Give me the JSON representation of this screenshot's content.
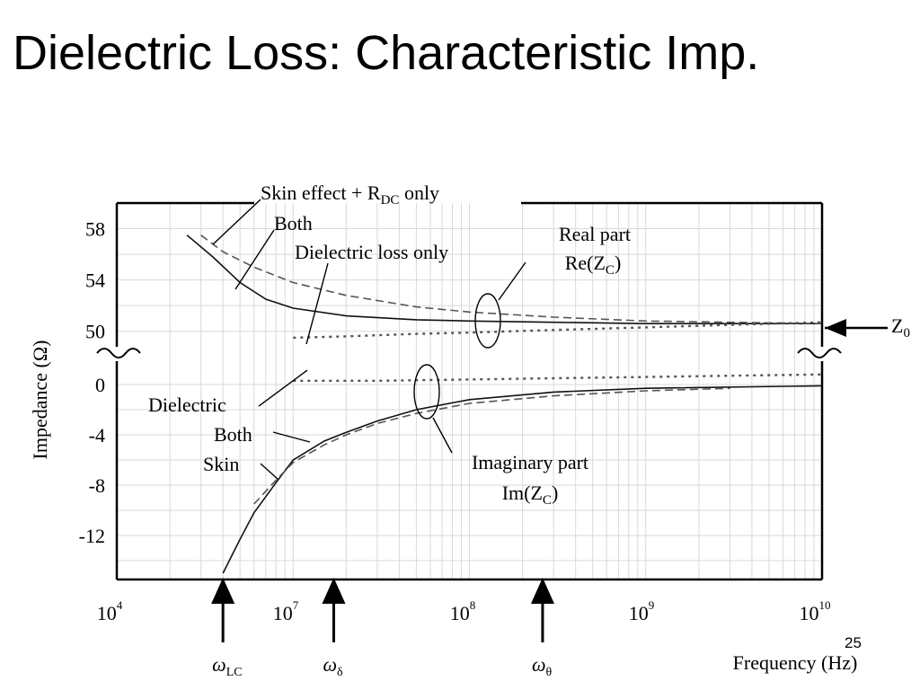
{
  "slide": {
    "title": "Dielectric Loss: Characteristic Imp.",
    "page_number": "25"
  },
  "chart_data": {
    "type": "line",
    "xscale": "log",
    "xlim": [
      "1e6",
      "1e10"
    ],
    "xlabel": "Frequency (Hz)",
    "ylabel": "Impedance (Ω)",
    "x_ticks": [
      {
        "exp": "4",
        "label": "10",
        "sup": "4"
      },
      {
        "exp": "7",
        "label": "10",
        "sup": "7"
      },
      {
        "exp": "8",
        "label": "10",
        "sup": "8"
      },
      {
        "exp": "9",
        "label": "10",
        "sup": "9"
      },
      {
        "exp": "10",
        "label": "10",
        "sup": "10"
      }
    ],
    "panels": [
      {
        "name": "Real part Re(Zc)",
        "ylim": [
          49,
          60
        ],
        "y_ticks": [
          "58",
          "54",
          "50"
        ],
        "y_tick_values": [
          58,
          54,
          50
        ],
        "series": [
          {
            "label": "Both",
            "style": "solid",
            "x": [
              2500000.0,
              3500000.0,
              5000000.0,
              7000000.0,
              10000000.0,
              20000000.0,
              50000000.0,
              100000000.0,
              300000000.0,
              1000000000.0,
              10000000000.0
            ],
            "y": [
              57.5,
              55.8,
              53.8,
              52.5,
              51.8,
              51.2,
              50.9,
              50.8,
              50.7,
              50.6,
              50.6
            ]
          },
          {
            "label": "Skin effect + RDC only",
            "style": "dashed",
            "x": [
              3000000.0,
              4000000.0,
              6000000.0,
              10000000.0,
              20000000.0,
              50000000.0,
              100000000.0,
              300000000.0,
              1000000000.0,
              10000000000.0
            ],
            "y": [
              57.5,
              56.2,
              55.0,
              53.8,
              52.8,
              51.9,
              51.5,
              51.1,
              50.8,
              50.6
            ]
          },
          {
            "label": "Dielectric loss only",
            "style": "dotted",
            "x": [
              10000000.0,
              20000000.0,
              50000000.0,
              100000000.0,
              300000000.0,
              1000000000.0,
              3000000000.0,
              10000000000.0
            ],
            "y": [
              49.5,
              49.6,
              49.8,
              49.9,
              50.1,
              50.3,
              50.5,
              50.7
            ]
          }
        ]
      },
      {
        "name": "Imaginary part Im(Zc)",
        "ylim": [
          -15.5,
          1.5
        ],
        "y_ticks": [
          "0",
          "-4",
          "-8",
          "-12"
        ],
        "y_tick_values": [
          0,
          -4,
          -8,
          -12
        ],
        "series": [
          {
            "label": "Both",
            "style": "solid",
            "x": [
              4000000.0,
              5000000.0,
              6000000.0,
              8000000.0,
              10000000.0,
              15000000.0,
              20000000.0,
              30000000.0,
              50000000.0,
              100000000.0,
              300000000.0,
              1000000000.0,
              10000000000.0
            ],
            "y": [
              -15,
              -12.3,
              -10.2,
              -7.8,
              -6.0,
              -4.5,
              -3.8,
              -2.9,
              -2.0,
              -1.2,
              -0.6,
              -0.3,
              -0.1
            ]
          },
          {
            "label": "Skin",
            "style": "dashed",
            "x": [
              6000000.0,
              8000000.0,
              10000000.0,
              15000000.0,
              20000000.0,
              30000000.0,
              50000000.0,
              100000000.0,
              300000000.0,
              1000000000.0,
              3000000000.0
            ],
            "y": [
              -9.5,
              -7.6,
              -6.2,
              -4.8,
              -4.0,
              -3.1,
              -2.3,
              -1.5,
              -0.9,
              -0.5,
              -0.3
            ]
          },
          {
            "label": "Dielectric",
            "style": "dotted",
            "x": [
              10000000.0,
              30000000.0,
              100000000.0,
              300000000.0,
              1000000000.0,
              3000000000.0,
              10000000000.0
            ],
            "y": [
              0.3,
              0.3,
              0.4,
              0.5,
              0.6,
              0.7,
              0.8
            ]
          }
        ]
      }
    ],
    "annotations": {
      "skin_effect": "Skin effect + R",
      "skin_effect_sub": "DC",
      "skin_effect_tail": " only",
      "both_real": "Both",
      "dielectric_loss_only": "Dielectric loss only",
      "real_part_1": "Real part",
      "real_part_2": "Re(Z",
      "real_part_2_sub": "C",
      "real_part_2_tail": ")",
      "z0": "Z",
      "z0_sub": "0",
      "dielectric_imag": "Dielectric",
      "both_imag": "Both",
      "skin_imag": "Skin",
      "imag_part_1": "Imaginary part",
      "imag_part_2": "Im(Z",
      "imag_part_2_sub": "C",
      "imag_part_2_tail": ")"
    },
    "markers": [
      {
        "symbol": "ω",
        "sub": "LC",
        "freq": 4000000.0
      },
      {
        "symbol": "ω",
        "sub": "δ",
        "freq": 17000000.0
      },
      {
        "symbol": "ω",
        "sub": "θ",
        "freq": 260000000.0
      }
    ]
  }
}
